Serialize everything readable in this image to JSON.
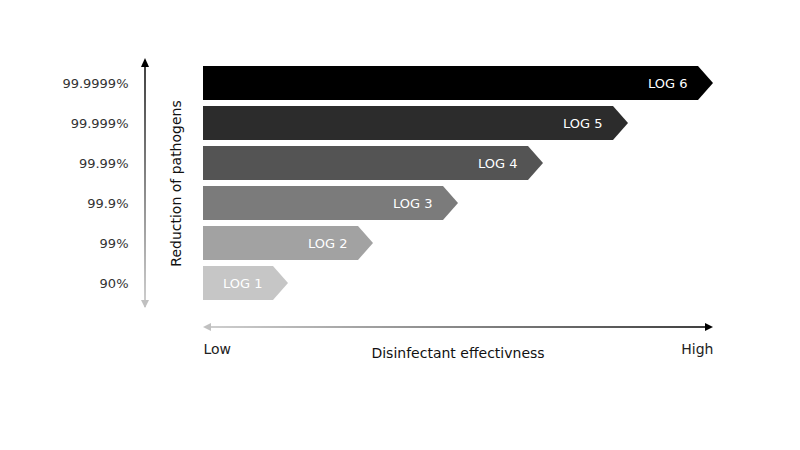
{
  "chart_data": {
    "type": "bar",
    "orientation": "horizontal",
    "categories": [
      "90%",
      "99%",
      "99.9%",
      "99.99%",
      "99.999%",
      "99.9999%"
    ],
    "values": [
      1,
      2,
      3,
      4,
      5,
      6
    ],
    "value_labels": [
      "LOG 1",
      "LOG 2",
      "LOG 3",
      "LOG 4",
      "LOG 5",
      "LOG 6"
    ],
    "data_labels": true,
    "colors": [
      "#c6c6c6",
      "#a2a2a2",
      "#7b7b7b",
      "#545454",
      "#2c2c2c",
      "#000000"
    ],
    "xlabel": "Disinfectant effectivness",
    "ylabel": "Reduction of pathogens",
    "xlim": [
      0,
      6
    ],
    "xticks": [
      {
        "value": 0,
        "label": "Low"
      },
      {
        "value": 6,
        "label": "High"
      }
    ],
    "grid": false
  }
}
